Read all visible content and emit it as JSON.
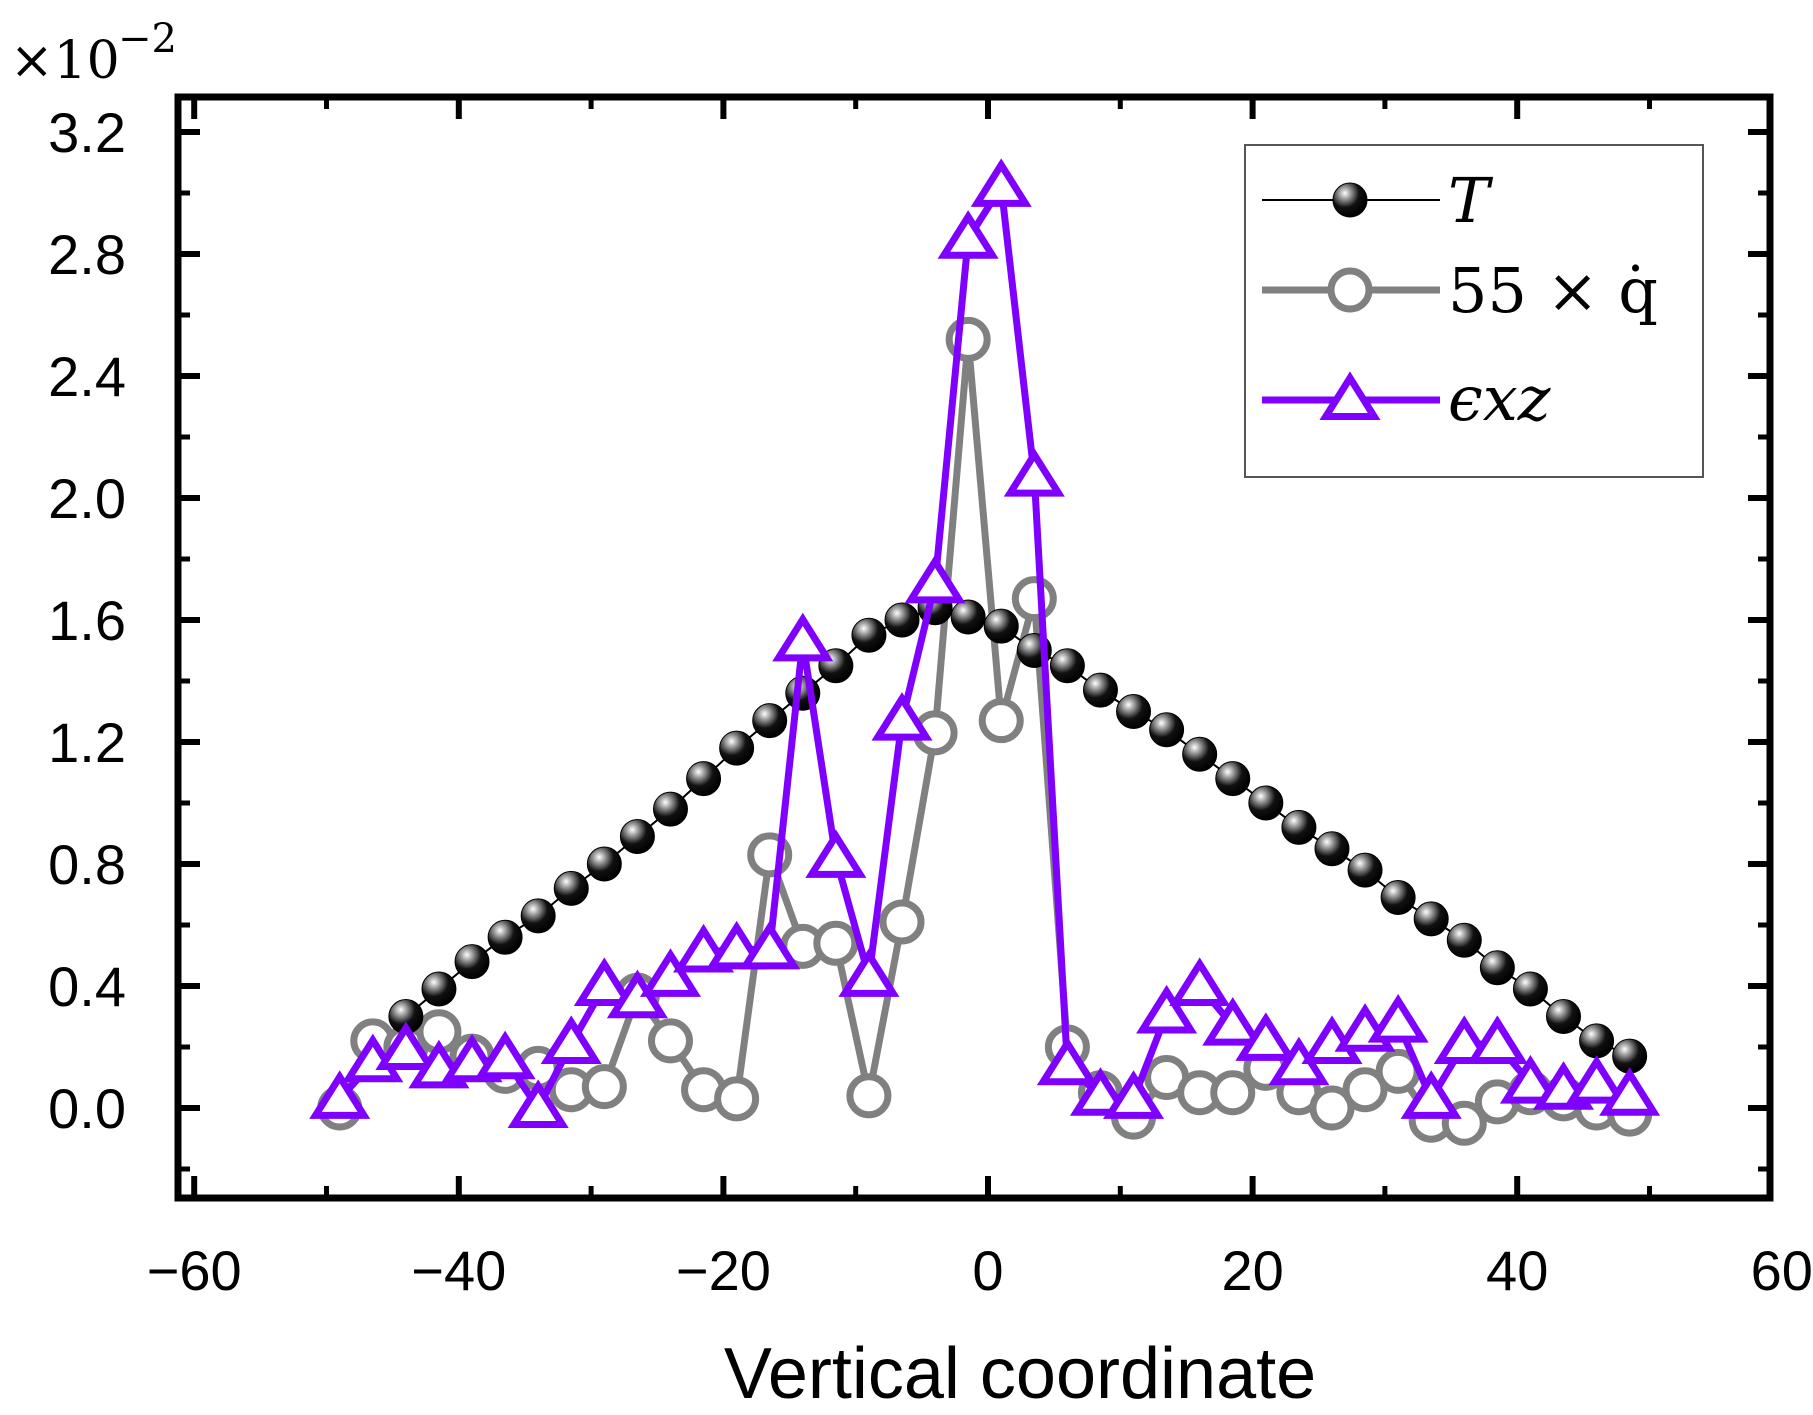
{
  "chart_data": {
    "type": "line",
    "xlabel": "Vertical coordinate",
    "ylabel": "",
    "xlim": [
      -60,
      60
    ],
    "ylim": [
      -0.2,
      3.3
    ],
    "x_ticks": [
      "−60",
      "−40",
      "−20",
      "0",
      "20",
      "40",
      "60"
    ],
    "x_tick_values": [
      -60,
      -40,
      -20,
      0,
      20,
      40,
      60
    ],
    "y_ticks": [
      "0.0",
      "0.4",
      "0.8",
      "1.2",
      "1.6",
      "2.0",
      "2.4",
      "2.8",
      "3.2"
    ],
    "y_tick_values": [
      0.0,
      0.4,
      0.8,
      1.2,
      1.6,
      2.0,
      2.4,
      2.8,
      3.2
    ],
    "y_multiplier": {
      "base": "×10",
      "exponent": "−2"
    },
    "legend_position": "top-right",
    "grid": false,
    "series": [
      {
        "name": "T",
        "color": "#000000",
        "marker": "filled-sphere",
        "x": [
          -44,
          -41.5,
          -39,
          -36.5,
          -34,
          -31.5,
          -29,
          -26.5,
          -24,
          -21.5,
          -19,
          -16.5,
          -14,
          -11.5,
          -9,
          -6.5,
          -4,
          -1.5,
          1,
          3.5,
          6,
          8.5,
          11,
          13.5,
          16,
          18.5,
          21,
          23.5,
          26,
          28.5,
          31,
          33.5,
          36,
          38.5,
          41,
          43.5,
          46,
          48.5
        ],
        "y": [
          0.3,
          0.39,
          0.48,
          0.56,
          0.63,
          0.72,
          0.8,
          0.89,
          0.98,
          1.08,
          1.18,
          1.27,
          1.36,
          1.45,
          1.55,
          1.6,
          1.64,
          1.61,
          1.58,
          1.5,
          1.45,
          1.37,
          1.3,
          1.24,
          1.16,
          1.08,
          1.0,
          0.92,
          0.85,
          0.78,
          0.69,
          0.62,
          0.55,
          0.46,
          0.39,
          0.3,
          0.22,
          0.17
        ]
      },
      {
        "name": "55 × q̇",
        "color": "#808080",
        "marker": "open-circle",
        "x": [
          -49,
          -46.5,
          -44,
          -41.5,
          -39,
          -36.5,
          -34,
          -31.5,
          -29,
          -26.5,
          -24,
          -21.5,
          -19,
          -16.5,
          -14,
          -11.5,
          -9,
          -6.5,
          -4,
          -1.5,
          1,
          3.5,
          6,
          8.5,
          11,
          13.5,
          16,
          18.5,
          21,
          23.5,
          26,
          28.5,
          31,
          33.5,
          36,
          38.5,
          41,
          43.5,
          46,
          48.5
        ],
        "y": [
          0.0,
          0.22,
          0.2,
          0.25,
          0.17,
          0.12,
          0.13,
          0.06,
          0.07,
          0.37,
          0.22,
          0.06,
          0.03,
          0.83,
          0.53,
          0.54,
          0.04,
          0.61,
          1.23,
          2.52,
          1.27,
          1.67,
          0.2,
          0.05,
          -0.03,
          0.1,
          0.05,
          0.05,
          0.13,
          0.05,
          0.0,
          0.06,
          0.12,
          -0.04,
          -0.05,
          0.02,
          0.05,
          0.03,
          0.0,
          -0.02
        ]
      },
      {
        "name": "ϵxz",
        "color": "#7f00ff",
        "marker": "open-triangle",
        "x": [
          -49,
          -46.5,
          -44,
          -41.5,
          -39,
          -36.5,
          -34,
          -31.5,
          -29,
          -26.5,
          -24,
          -21.5,
          -19,
          -16.5,
          -14,
          -11.5,
          -9,
          -6.5,
          -4,
          -1.5,
          1,
          3.5,
          6,
          8.5,
          11,
          13.5,
          16,
          18.5,
          21,
          23.5,
          26,
          28.5,
          31,
          33.5,
          36,
          38.5,
          41,
          43.5,
          46,
          48.5
        ],
        "y": [
          0.03,
          0.15,
          0.19,
          0.13,
          0.15,
          0.16,
          0.0,
          0.21,
          0.4,
          0.36,
          0.43,
          0.51,
          0.52,
          0.52,
          1.53,
          0.82,
          0.43,
          1.27,
          1.72,
          2.85,
          3.02,
          2.07,
          0.14,
          0.04,
          0.03,
          0.31,
          0.4,
          0.27,
          0.22,
          0.14,
          0.21,
          0.25,
          0.28,
          0.03,
          0.21,
          0.21,
          0.08,
          0.06,
          0.08,
          0.04
        ]
      }
    ]
  }
}
